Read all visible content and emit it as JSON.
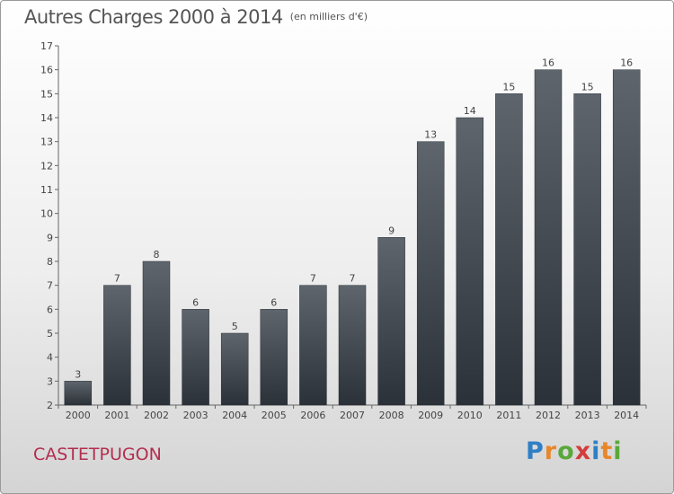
{
  "title": "Autres Charges 2000 à 2014",
  "unit_note": "(en milliers d'€)",
  "commune": "CASTETPUGON",
  "logo": {
    "letters": [
      "P",
      "r",
      "o",
      "x",
      "i",
      "t",
      "i"
    ],
    "colors": [
      "#2f7fc6",
      "#e8872a",
      "#5aa83a",
      "#d43d3d",
      "#2f7fc6",
      "#e8872a",
      "#5aa83a"
    ]
  },
  "chart_data": {
    "type": "bar",
    "categories": [
      "2000",
      "2001",
      "2002",
      "2003",
      "2004",
      "2005",
      "2006",
      "2007",
      "2008",
      "2009",
      "2010",
      "2011",
      "2012",
      "2013",
      "2014"
    ],
    "values": [
      3,
      7,
      8,
      6,
      5,
      6,
      7,
      7,
      9,
      13,
      14,
      15,
      16,
      15,
      16
    ],
    "data_labels": [
      "3",
      "7",
      "8",
      "6",
      "5",
      "6",
      "7",
      "7",
      "9",
      "13",
      "14",
      "15",
      "16",
      "15",
      "16"
    ],
    "title": "Autres Charges 2000 à 2014",
    "xlabel": "",
    "ylabel": "",
    "ylim": [
      2,
      17
    ],
    "yticks": [
      "2",
      "3",
      "4",
      "5",
      "6",
      "7",
      "8",
      "9",
      "10",
      "11",
      "12",
      "13",
      "14",
      "15",
      "16",
      "17"
    ],
    "grid": false,
    "legend": "none",
    "bar_color_top": "#5f656c",
    "bar_color_bottom": "#2b3138"
  }
}
